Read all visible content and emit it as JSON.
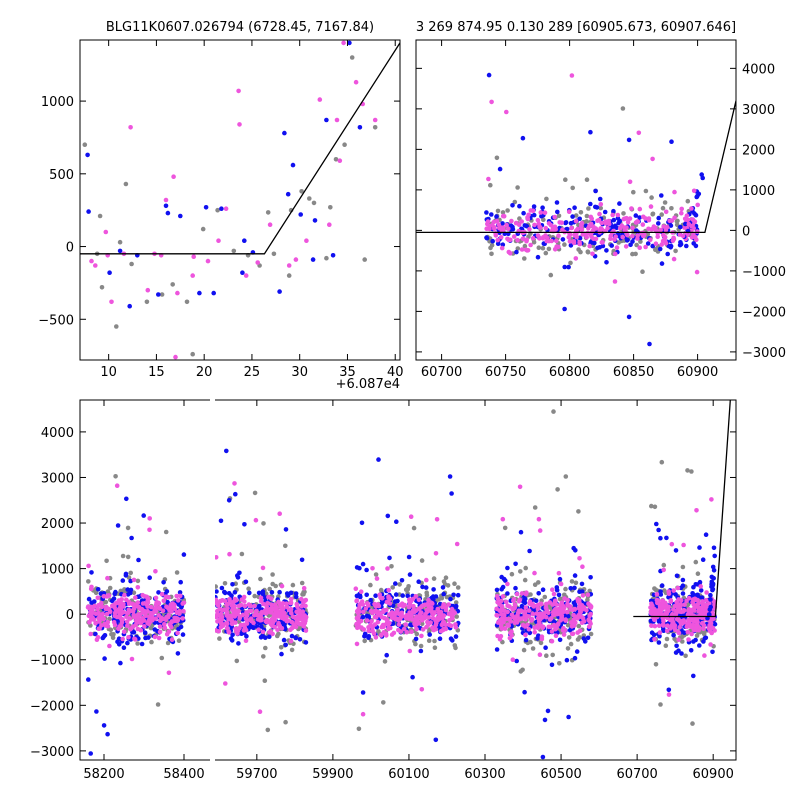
{
  "figure": {
    "background": "#ffffff"
  },
  "colors": {
    "gray": "#888888",
    "blue": "#1010f0",
    "magenta": "#ee55dd",
    "model": "#000000"
  },
  "chart_data": [
    {
      "id": "zoom_left",
      "type": "scatter",
      "title": "BLG11K0607.026794 (6728.45, 7167.84)",
      "xlabel": "",
      "ylabel": "",
      "xlim": [
        7,
        40.5
      ],
      "ylim": [
        -780,
        1420
      ],
      "x_offset_label": "+6.087e4",
      "xticks": [
        10,
        15,
        20,
        25,
        30,
        35,
        40
      ],
      "yticks": [
        -500,
        0,
        500,
        1000
      ],
      "yaxis_side": "left",
      "model_line": {
        "x": [
          7,
          26.3,
          40.5
        ],
        "y": [
          -50,
          -50,
          1400
        ]
      },
      "series": [
        {
          "name": "gray",
          "color": "#888888",
          "points": [
            [
              7.5,
              700
            ],
            [
              8.8,
              -50
            ],
            [
              9.3,
              -280
            ],
            [
              10.8,
              -550
            ],
            [
              11.2,
              30
            ],
            [
              11.8,
              430
            ],
            [
              14.0,
              -380
            ],
            [
              15.6,
              -330
            ],
            [
              18.2,
              -380
            ],
            [
              18.8,
              -740
            ],
            [
              21.4,
              250
            ],
            [
              24.6,
              -60
            ],
            [
              25.8,
              -130
            ],
            [
              26.7,
              235
            ],
            [
              27.3,
              -50
            ],
            [
              28.9,
              -200
            ],
            [
              29.1,
              250
            ],
            [
              31.0,
              330
            ],
            [
              31.5,
              300
            ],
            [
              32.8,
              -80
            ],
            [
              33.2,
              270
            ],
            [
              34.7,
              700
            ],
            [
              35.5,
              1300
            ],
            [
              36.8,
              -90
            ],
            [
              9.1,
              210
            ],
            [
              12.4,
              -120
            ],
            [
              16.7,
              -260
            ],
            [
              19.9,
              120
            ],
            [
              23.1,
              -30
            ],
            [
              30.2,
              380
            ],
            [
              33.8,
              600
            ],
            [
              37.9,
              820
            ]
          ]
        },
        {
          "name": "blue",
          "color": "#1010f0",
          "points": [
            [
              7.8,
              630
            ],
            [
              7.9,
              240
            ],
            [
              10.1,
              -180
            ],
            [
              11.2,
              -30
            ],
            [
              13.0,
              -60
            ],
            [
              15.2,
              -330
            ],
            [
              16.0,
              280
            ],
            [
              16.2,
              230
            ],
            [
              17.5,
              210
            ],
            [
              20.2,
              270
            ],
            [
              21.0,
              -320
            ],
            [
              21.8,
              260
            ],
            [
              24.0,
              -180
            ],
            [
              24.2,
              40
            ],
            [
              25.1,
              -40
            ],
            [
              28.4,
              780
            ],
            [
              28.8,
              360
            ],
            [
              29.3,
              560
            ],
            [
              30.1,
              220
            ],
            [
              31.4,
              -90
            ],
            [
              31.6,
              180
            ],
            [
              32.8,
              870
            ],
            [
              35.2,
              1400
            ],
            [
              36.3,
              820
            ],
            [
              12.2,
              -410
            ],
            [
              19.5,
              -320
            ],
            [
              27.9,
              -310
            ],
            [
              33.5,
              -60
            ]
          ]
        },
        {
          "name": "magenta",
          "color": "#ee55dd",
          "points": [
            [
              8.2,
              -100
            ],
            [
              8.6,
              -130
            ],
            [
              9.7,
              100
            ],
            [
              9.9,
              -60
            ],
            [
              10.3,
              -380
            ],
            [
              11.6,
              -50
            ],
            [
              12.3,
              820
            ],
            [
              14.8,
              -50
            ],
            [
              15.5,
              -60
            ],
            [
              16.0,
              320
            ],
            [
              16.8,
              480
            ],
            [
              17.2,
              -320
            ],
            [
              18.8,
              -200
            ],
            [
              18.9,
              -70
            ],
            [
              20.4,
              -100
            ],
            [
              21.5,
              40
            ],
            [
              23.6,
              1070
            ],
            [
              23.7,
              840
            ],
            [
              24.4,
              -200
            ],
            [
              25.6,
              -110
            ],
            [
              26.9,
              150
            ],
            [
              28.9,
              -130
            ],
            [
              29.6,
              -90
            ],
            [
              32.1,
              1010
            ],
            [
              33.1,
              150
            ],
            [
              33.9,
              870
            ],
            [
              34.2,
              590
            ],
            [
              34.6,
              1400
            ],
            [
              35.9,
              1130
            ],
            [
              36.6,
              980
            ],
            [
              37.9,
              870
            ],
            [
              14.1,
              -300
            ],
            [
              17.0,
              -760
            ],
            [
              22.3,
              260
            ],
            [
              30.7,
              40
            ]
          ]
        }
      ]
    },
    {
      "id": "season_right",
      "type": "scatter",
      "title": "3 269 874.95 0.130 289 [60905.673, 60907.646]",
      "xlabel": "",
      "ylabel": "",
      "xlim": [
        60680,
        60930
      ],
      "ylim": [
        -3200,
        4700
      ],
      "xticks": [
        60700,
        60750,
        60800,
        60850,
        60900
      ],
      "yticks": [
        -3000,
        -2000,
        -1000,
        0,
        1000,
        2000,
        3000,
        4000
      ],
      "yaxis_side": "right",
      "model_line": {
        "x": [
          60680,
          60905.7,
          60930
        ],
        "y": [
          -50,
          -50,
          3200
        ]
      }
    },
    {
      "id": "full_bottom",
      "type": "scatter",
      "title": "",
      "xlabel": "",
      "ylabel": "",
      "ylim": [
        -3200,
        4700
      ],
      "broken_x_axis": [
        {
          "xlim": [
            58140,
            58465
          ],
          "xticks": [
            58200,
            58400
          ]
        },
        {
          "xlim": [
            59590,
            60960
          ],
          "xticks": [
            59700,
            59900,
            60100,
            60300,
            60500,
            60700,
            60900
          ]
        }
      ],
      "yticks": [
        -3000,
        -2000,
        -1000,
        0,
        1000,
        2000,
        3000,
        4000
      ],
      "yaxis_side": "left",
      "seasons_hjd": [
        [
          58160,
          58400
        ],
        [
          59590,
          59830
        ],
        [
          59960,
          60230
        ],
        [
          60330,
          60580
        ],
        [
          60735,
          60905
        ]
      ],
      "model_line": {
        "x": [
          60690,
          60905.7,
          60945
        ],
        "y": [
          -50,
          -50,
          4700
        ]
      }
    }
  ]
}
